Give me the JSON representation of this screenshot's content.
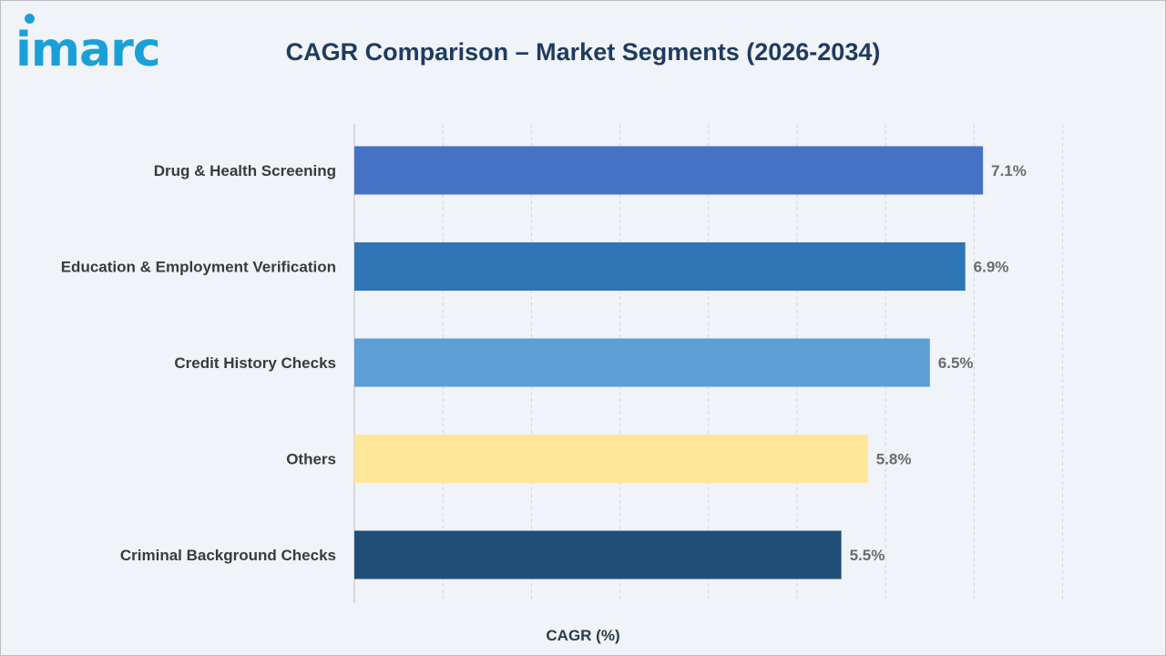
{
  "brand": {
    "logo_text": "imarc",
    "logo_color": "#1aa0d8"
  },
  "chart_data": {
    "type": "bar",
    "orientation": "horizontal",
    "title": "CAGR Comparison – Market Segments (2026-2034)",
    "xlabel": "CAGR (%)",
    "ylabel": "",
    "categories": [
      "Drug & Health Screening",
      "Education & Employment Verification",
      "Credit History Checks",
      "Others",
      "Criminal Background Checks"
    ],
    "values": [
      7.1,
      6.9,
      6.5,
      5.8,
      5.5
    ],
    "value_labels": [
      "7.1%",
      "6.9%",
      "6.5%",
      "5.8%",
      "5.5%"
    ],
    "colors": [
      "#4472c4",
      "#2e75b6",
      "#5b9fd6",
      "#ffe699",
      "#1f4e79"
    ],
    "xlim": [
      0,
      8
    ],
    "grid": "vertical dashed",
    "legend": "none"
  }
}
